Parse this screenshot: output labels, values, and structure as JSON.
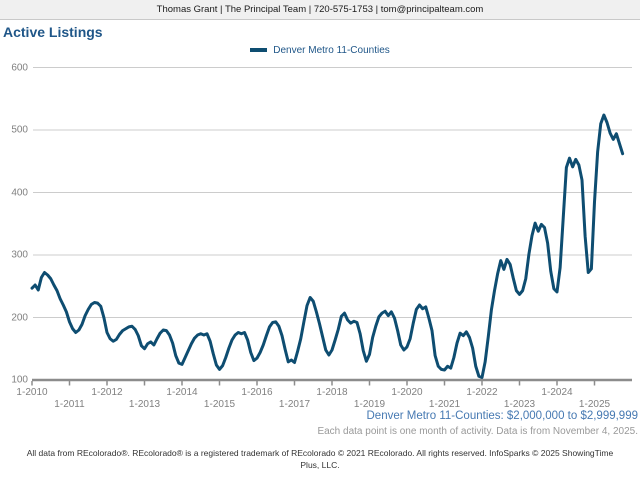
{
  "header": {
    "contact": "Thomas Grant | The Principal Team | 720-575-1753 | tom@principalteam.com"
  },
  "title": "Active Listings",
  "legend": {
    "label": "Denver Metro 11-Counties"
  },
  "notes": {
    "range": "Denver Metro 11-Counties: $2,000,000 to $2,999,999",
    "data_info": "Each data point is one month of activity. Data is from November 4, 2025.",
    "footer": "All data from REcolorado®. REcolorado® is a registered trademark of REcolorado © 2021 REcolorado. All rights reserved. InfoSparks © 2025 ShowingTime Plus, LLC."
  },
  "colors": {
    "line": "#0e4d71",
    "title_text": "#1f5688",
    "legend_text": "#1f5688",
    "range_note_text": "#4679b2",
    "axis_text": "#808080",
    "grid": "#cccccc",
    "axis_line": "#8c8c8c",
    "note_gray": "#999999",
    "header_bg": "#f0f0f0"
  },
  "chart_data": {
    "type": "line",
    "title": "Active Listings",
    "legend_position": "top-center",
    "grid": "horizontal",
    "series_name": "Denver Metro 11-Counties",
    "x_start": "2010-01",
    "x_end": "2025-10",
    "x_frequency": "monthly",
    "ylim": [
      100,
      600
    ],
    "y_ticks": [
      100,
      200,
      300,
      400,
      500,
      600
    ],
    "x_tick_labels": [
      "1-2010",
      "1-2011",
      "1-2012",
      "1-2013",
      "1-2014",
      "1-2015",
      "1-2016",
      "1-2017",
      "1-2018",
      "1-2019",
      "1-2020",
      "1-2021",
      "1-2022",
      "1-2023",
      "1-2024",
      "1-2025"
    ],
    "values": [
      247,
      252,
      244,
      264,
      272,
      268,
      262,
      252,
      243,
      230,
      220,
      209,
      193,
      182,
      176,
      180,
      189,
      203,
      213,
      221,
      224,
      223,
      218,
      200,
      176,
      166,
      162,
      165,
      173,
      179,
      182,
      185,
      186,
      181,
      171,
      155,
      150,
      158,
      161,
      156,
      166,
      175,
      180,
      179,
      172,
      159,
      139,
      127,
      125,
      136,
      147,
      158,
      167,
      172,
      174,
      172,
      174,
      162,
      142,
      124,
      117,
      123,
      136,
      151,
      164,
      172,
      176,
      174,
      176,
      164,
      144,
      131,
      135,
      144,
      156,
      171,
      185,
      192,
      193,
      186,
      171,
      149,
      129,
      132,
      128,
      146,
      166,
      193,
      219,
      232,
      226,
      209,
      190,
      169,
      148,
      140,
      148,
      164,
      181,
      202,
      207,
      196,
      191,
      194,
      192,
      174,
      147,
      130,
      141,
      168,
      186,
      201,
      207,
      210,
      203,
      209,
      199,
      179,
      156,
      148,
      153,
      166,
      191,
      213,
      220,
      214,
      217,
      199,
      179,
      139,
      122,
      117,
      116,
      122,
      119,
      136,
      159,
      175,
      171,
      177,
      168,
      151,
      122,
      106,
      104,
      129,
      169,
      212,
      243,
      270,
      291,
      277,
      293,
      285,
      263,
      243,
      237,
      243,
      262,
      301,
      331,
      351,
      338,
      349,
      344,
      319,
      274,
      246,
      241,
      280,
      360,
      440,
      455,
      441,
      453,
      444,
      420,
      330,
      272,
      278,
      385,
      465,
      510,
      524,
      512,
      495,
      485,
      494,
      478,
      462
    ]
  }
}
